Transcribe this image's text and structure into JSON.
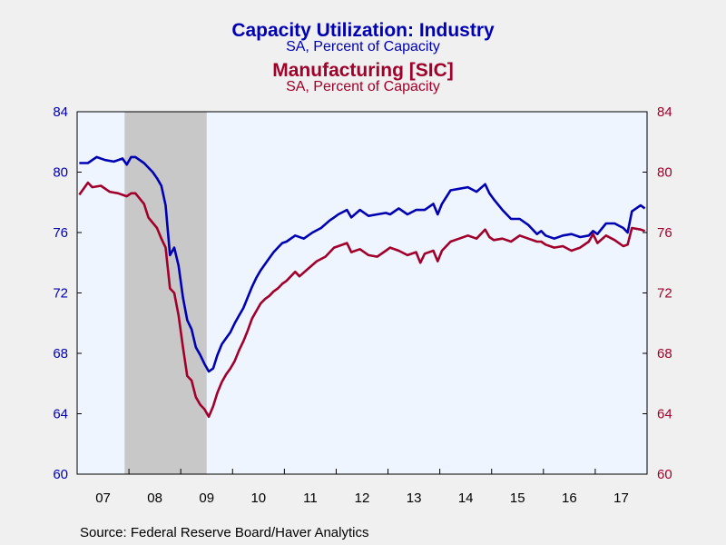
{
  "chart_data": {
    "type": "line",
    "title": "Capacity Utilization: Industry",
    "subtitle": "SA, Percent of Capacity",
    "title2": "Manufacturing [SIC]",
    "subtitle2": "SA, Percent of Capacity",
    "source": "Source:  Federal Reserve Board/Haver Analytics",
    "colors": {
      "series1": "#0000b3",
      "series2": "#a0002a",
      "recession": "#c8c8c8",
      "plot_bg": "#eef5ff",
      "page_bg": "#f0f0f0"
    },
    "x_range": [
      "2007-01",
      "2017-12"
    ],
    "x_tick_labels": [
      "07",
      "08",
      "09",
      "10",
      "11",
      "12",
      "13",
      "14",
      "15",
      "16",
      "17"
    ],
    "left_axis": {
      "ylim": [
        60,
        84
      ],
      "ticks": [
        "60",
        "64",
        "68",
        "72",
        "76",
        "80",
        "84"
      ]
    },
    "right_axis": {
      "ylim": [
        60,
        84
      ],
      "ticks": [
        "60",
        "64",
        "68",
        "72",
        "76",
        "80",
        "84"
      ]
    },
    "recession": {
      "start": "2007-12",
      "end": "2009-06"
    },
    "grid": false,
    "series": [
      {
        "name": "Capacity Utilization: Industry",
        "axis": "left",
        "points": [
          [
            "2007-01",
            80.6
          ],
          [
            "2007-03",
            80.6
          ],
          [
            "2007-05",
            81.0
          ],
          [
            "2007-07",
            80.8
          ],
          [
            "2007-09",
            80.7
          ],
          [
            "2007-11",
            80.9
          ],
          [
            "2007-12",
            80.5
          ],
          [
            "2008-01",
            81.0
          ],
          [
            "2008-02",
            81.0
          ],
          [
            "2008-04",
            80.6
          ],
          [
            "2008-06",
            80.0
          ],
          [
            "2008-07",
            79.6
          ],
          [
            "2008-08",
            79.1
          ],
          [
            "2008-09",
            77.8
          ],
          [
            "2008-10",
            74.5
          ],
          [
            "2008-11",
            75.0
          ],
          [
            "2008-12",
            73.8
          ],
          [
            "2009-01",
            71.7
          ],
          [
            "2009-02",
            70.2
          ],
          [
            "2009-03",
            69.6
          ],
          [
            "2009-04",
            68.4
          ],
          [
            "2009-05",
            67.9
          ],
          [
            "2009-06",
            67.3
          ],
          [
            "2009-07",
            66.8
          ],
          [
            "2009-08",
            67.0
          ],
          [
            "2009-09",
            67.9
          ],
          [
            "2009-10",
            68.6
          ],
          [
            "2009-11",
            69.0
          ],
          [
            "2009-12",
            69.4
          ],
          [
            "2010-01",
            70.0
          ],
          [
            "2010-02",
            70.5
          ],
          [
            "2010-03",
            71.0
          ],
          [
            "2010-04",
            71.7
          ],
          [
            "2010-05",
            72.4
          ],
          [
            "2010-06",
            73.0
          ],
          [
            "2010-07",
            73.5
          ],
          [
            "2010-08",
            73.9
          ],
          [
            "2010-09",
            74.3
          ],
          [
            "2010-10",
            74.7
          ],
          [
            "2010-11",
            75.0
          ],
          [
            "2010-12",
            75.3
          ],
          [
            "2011-01",
            75.4
          ],
          [
            "2011-03",
            75.8
          ],
          [
            "2011-05",
            75.6
          ],
          [
            "2011-07",
            76.0
          ],
          [
            "2011-09",
            76.3
          ],
          [
            "2011-11",
            76.8
          ],
          [
            "2011-12",
            77.0
          ],
          [
            "2012-01",
            77.2
          ],
          [
            "2012-03",
            77.5
          ],
          [
            "2012-04",
            77.0
          ],
          [
            "2012-06",
            77.5
          ],
          [
            "2012-08",
            77.1
          ],
          [
            "2012-10",
            77.2
          ],
          [
            "2012-12",
            77.3
          ],
          [
            "2013-01",
            77.2
          ],
          [
            "2013-03",
            77.6
          ],
          [
            "2013-05",
            77.2
          ],
          [
            "2013-07",
            77.5
          ],
          [
            "2013-09",
            77.5
          ],
          [
            "2013-11",
            77.9
          ],
          [
            "2013-12",
            77.2
          ],
          [
            "2014-01",
            77.9
          ],
          [
            "2014-03",
            78.8
          ],
          [
            "2014-05",
            78.9
          ],
          [
            "2014-07",
            79.0
          ],
          [
            "2014-09",
            78.7
          ],
          [
            "2014-11",
            79.2
          ],
          [
            "2014-12",
            78.6
          ],
          [
            "2015-01",
            78.2
          ],
          [
            "2015-03",
            77.5
          ],
          [
            "2015-05",
            76.9
          ],
          [
            "2015-07",
            76.9
          ],
          [
            "2015-09",
            76.5
          ],
          [
            "2015-11",
            75.9
          ],
          [
            "2015-12",
            76.1
          ],
          [
            "2016-01",
            75.8
          ],
          [
            "2016-03",
            75.6
          ],
          [
            "2016-05",
            75.8
          ],
          [
            "2016-07",
            75.9
          ],
          [
            "2016-09",
            75.7
          ],
          [
            "2016-11",
            75.8
          ],
          [
            "2016-12",
            76.1
          ],
          [
            "2017-01",
            75.9
          ],
          [
            "2017-03",
            76.6
          ],
          [
            "2017-05",
            76.6
          ],
          [
            "2017-07",
            76.3
          ],
          [
            "2017-08",
            76.0
          ],
          [
            "2017-09",
            77.4
          ],
          [
            "2017-11",
            77.8
          ],
          [
            "2017-12",
            77.6
          ]
        ]
      },
      {
        "name": "Manufacturing [SIC]",
        "axis": "right",
        "points": [
          [
            "2007-01",
            78.5
          ],
          [
            "2007-03",
            79.3
          ],
          [
            "2007-04",
            79.0
          ],
          [
            "2007-06",
            79.1
          ],
          [
            "2007-08",
            78.7
          ],
          [
            "2007-10",
            78.6
          ],
          [
            "2007-12",
            78.4
          ],
          [
            "2008-01",
            78.6
          ],
          [
            "2008-02",
            78.6
          ],
          [
            "2008-04",
            77.9
          ],
          [
            "2008-05",
            77.0
          ],
          [
            "2008-07",
            76.3
          ],
          [
            "2008-08",
            75.6
          ],
          [
            "2008-09",
            75.0
          ],
          [
            "2008-10",
            72.3
          ],
          [
            "2008-11",
            72.0
          ],
          [
            "2008-12",
            70.5
          ],
          [
            "2009-01",
            68.4
          ],
          [
            "2009-02",
            66.5
          ],
          [
            "2009-03",
            66.2
          ],
          [
            "2009-04",
            65.1
          ],
          [
            "2009-05",
            64.6
          ],
          [
            "2009-06",
            64.3
          ],
          [
            "2009-07",
            63.8
          ],
          [
            "2009-08",
            64.5
          ],
          [
            "2009-09",
            65.4
          ],
          [
            "2009-10",
            66.1
          ],
          [
            "2009-11",
            66.6
          ],
          [
            "2009-12",
            67.0
          ],
          [
            "2010-01",
            67.5
          ],
          [
            "2010-02",
            68.2
          ],
          [
            "2010-03",
            68.8
          ],
          [
            "2010-04",
            69.5
          ],
          [
            "2010-05",
            70.3
          ],
          [
            "2010-06",
            70.8
          ],
          [
            "2010-07",
            71.3
          ],
          [
            "2010-08",
            71.6
          ],
          [
            "2010-09",
            71.8
          ],
          [
            "2010-10",
            72.1
          ],
          [
            "2010-11",
            72.3
          ],
          [
            "2010-12",
            72.6
          ],
          [
            "2011-01",
            72.8
          ],
          [
            "2011-03",
            73.4
          ],
          [
            "2011-04",
            73.1
          ],
          [
            "2011-06",
            73.6
          ],
          [
            "2011-08",
            74.1
          ],
          [
            "2011-10",
            74.4
          ],
          [
            "2011-12",
            75.0
          ],
          [
            "2012-01",
            75.1
          ],
          [
            "2012-03",
            75.3
          ],
          [
            "2012-04",
            74.7
          ],
          [
            "2012-06",
            74.9
          ],
          [
            "2012-08",
            74.5
          ],
          [
            "2012-10",
            74.4
          ],
          [
            "2012-12",
            74.8
          ],
          [
            "2013-01",
            75.0
          ],
          [
            "2013-03",
            74.8
          ],
          [
            "2013-05",
            74.5
          ],
          [
            "2013-07",
            74.7
          ],
          [
            "2013-08",
            74.0
          ],
          [
            "2013-09",
            74.6
          ],
          [
            "2013-11",
            74.8
          ],
          [
            "2013-12",
            74.1
          ],
          [
            "2014-01",
            74.8
          ],
          [
            "2014-03",
            75.4
          ],
          [
            "2014-05",
            75.6
          ],
          [
            "2014-07",
            75.8
          ],
          [
            "2014-09",
            75.6
          ],
          [
            "2014-11",
            76.2
          ],
          [
            "2014-12",
            75.7
          ],
          [
            "2015-01",
            75.5
          ],
          [
            "2015-03",
            75.6
          ],
          [
            "2015-05",
            75.4
          ],
          [
            "2015-07",
            75.8
          ],
          [
            "2015-09",
            75.6
          ],
          [
            "2015-11",
            75.4
          ],
          [
            "2015-12",
            75.4
          ],
          [
            "2016-01",
            75.2
          ],
          [
            "2016-03",
            75.0
          ],
          [
            "2016-05",
            75.1
          ],
          [
            "2016-07",
            74.8
          ],
          [
            "2016-09",
            75.0
          ],
          [
            "2016-11",
            75.4
          ],
          [
            "2016-12",
            75.9
          ],
          [
            "2017-01",
            75.3
          ],
          [
            "2017-03",
            75.8
          ],
          [
            "2017-05",
            75.5
          ],
          [
            "2017-07",
            75.1
          ],
          [
            "2017-08",
            75.2
          ],
          [
            "2017-09",
            76.3
          ],
          [
            "2017-11",
            76.2
          ],
          [
            "2017-12",
            76.1
          ]
        ]
      }
    ]
  }
}
